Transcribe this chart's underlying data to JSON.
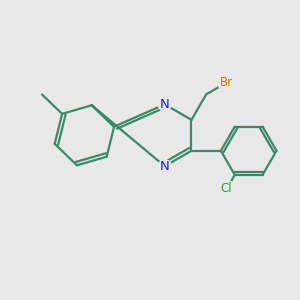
{
  "bg_color": "#e8e8e8",
  "bond_color": "#3a8a6a",
  "nitrogen_color": "#1a1aee",
  "bromine_color": "#cc7700",
  "chlorine_color": "#22aa22",
  "line_width": 1.6,
  "dbo": 0.1,
  "xlim": [
    0,
    10
  ],
  "ylim": [
    0,
    10
  ],
  "ring_r": 1.05
}
